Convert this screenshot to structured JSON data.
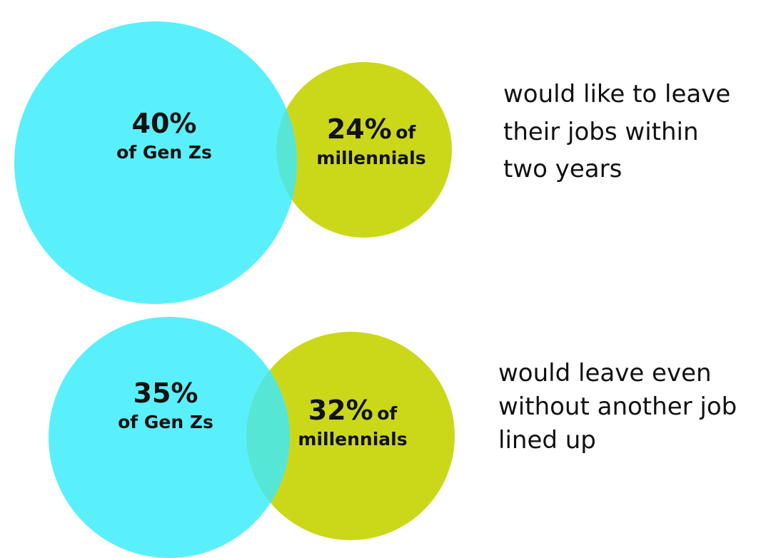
{
  "colors": {
    "genz": "#5af0fb",
    "millennials": "#cbd81a",
    "overlap": "#56e6d6"
  },
  "groups": [
    {
      "genz": {
        "pct": "40%",
        "label": "of Gen Zs",
        "value": 40
      },
      "millennials": {
        "pct": "24%",
        "of": "of",
        "label": "millennials",
        "value": 24
      },
      "caption": [
        "would like to leave",
        "their jobs within",
        "two years"
      ]
    },
    {
      "genz": {
        "pct": "35%",
        "label": "of Gen Zs",
        "value": 35
      },
      "millennials": {
        "pct": "32%",
        "of": "of",
        "label": "millennials",
        "value": 32
      },
      "caption": [
        "would leave even",
        "without another job",
        "lined up"
      ]
    }
  ]
}
